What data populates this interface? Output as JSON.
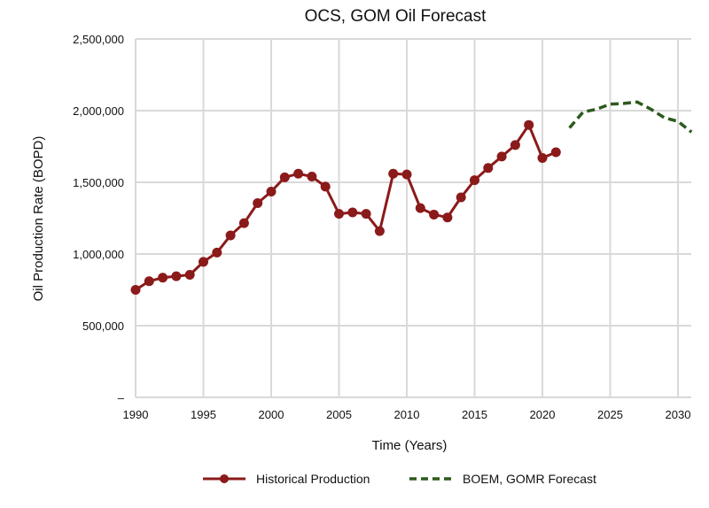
{
  "chart_data": {
    "type": "line",
    "title": "OCS, GOM Oil Forecast",
    "xlabel": "Time (Years)",
    "ylabel": "Oil Production Rate (BOPD)",
    "xlim": [
      1990,
      2031
    ],
    "ylim": [
      0,
      2500000
    ],
    "x_ticks": [
      1990,
      1995,
      2000,
      2005,
      2010,
      2015,
      2020,
      2025,
      2030
    ],
    "y_ticks": [
      0,
      500000,
      1000000,
      1500000,
      2000000,
      2500000
    ],
    "y_tick_labels": [
      "–",
      "500,000",
      "1,000,000",
      "1,500,000",
      "2,000,000",
      "2,500,000"
    ],
    "grid": true,
    "legend_placement": "bottom",
    "series": [
      {
        "name": "Historical Production",
        "color": "#8b1a1a",
        "style": "solid-markers",
        "x": [
          1990,
          1991,
          1992,
          1993,
          1994,
          1995,
          1996,
          1997,
          1998,
          1999,
          2000,
          2001,
          2002,
          2003,
          2004,
          2005,
          2006,
          2007,
          2008,
          2009,
          2010,
          2011,
          2012,
          2013,
          2014,
          2015,
          2016,
          2017,
          2018,
          2019,
          2020,
          2021
        ],
        "y": [
          750000,
          810000,
          835000,
          845000,
          855000,
          945000,
          1010000,
          1130000,
          1215000,
          1355000,
          1435000,
          1535000,
          1560000,
          1540000,
          1470000,
          1280000,
          1290000,
          1280000,
          1160000,
          1560000,
          1555000,
          1320000,
          1275000,
          1255000,
          1395000,
          1515000,
          1600000,
          1680000,
          1760000,
          1900000,
          1670000,
          1710000
        ]
      },
      {
        "name": "BOEM, GOMR Forecast",
        "color": "#2d5a1e",
        "style": "dashed",
        "x": [
          2022,
          2023,
          2024,
          2025,
          2026,
          2027,
          2028,
          2029,
          2030,
          2031
        ],
        "y": [
          1880000,
          1990000,
          2010000,
          2045000,
          2050000,
          2060000,
          2010000,
          1950000,
          1925000,
          1850000
        ]
      }
    ]
  }
}
